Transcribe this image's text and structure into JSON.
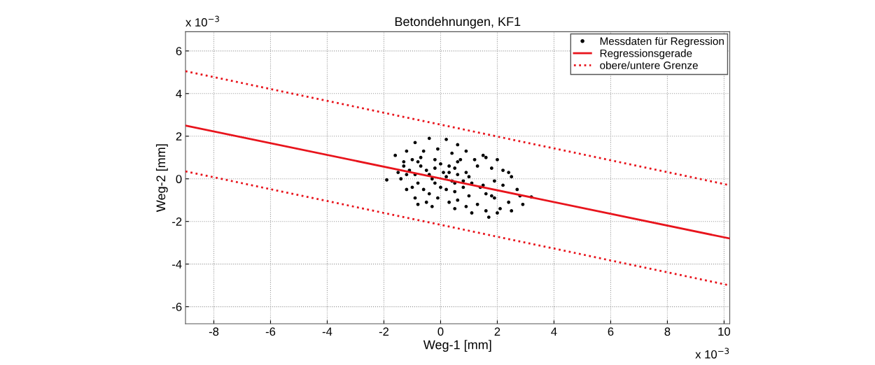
{
  "chart_data": {
    "type": "scatter",
    "title": "Betondehnungen, KF1",
    "xlabel": "Weg-1 [mm]",
    "ylabel": "Weg-2 [mm]",
    "annotations": [
      "x 10$^{−3}$",
      "x 10$^{−3}$"
    ],
    "xlim": [
      -9,
      10.2
    ],
    "ylim": [
      -6.8,
      6.9
    ],
    "xticks": [
      -8,
      -6,
      -4,
      -2,
      0,
      2,
      4,
      6,
      8,
      10
    ],
    "yticks": [
      -6,
      -4,
      -2,
      0,
      2,
      4,
      6
    ],
    "grid": true,
    "legend": "top right",
    "series": [
      {
        "name": "Messdaten für Regression",
        "marker": "circle",
        "color": "#000000",
        "x": [
          -1.9,
          -1.5,
          -1.3,
          -1.6,
          -1.2,
          -0.9,
          -0.4,
          0.2,
          0.6,
          0.9,
          0.7,
          0.3,
          -0.2,
          -0.7,
          -1.1,
          -1.4,
          -1.2,
          -0.9,
          -0.5,
          -0.1,
          0.2,
          0.5,
          0.9,
          1.2,
          1.5,
          1.3,
          1.0,
          0.8,
          0.6,
          0.9,
          1.3,
          1.6,
          1.9,
          2.2,
          2.4,
          2.2,
          1.9,
          1.6,
          1.7,
          2.0,
          2.4,
          2.8,
          3.2,
          2.9,
          2.5,
          2.1,
          1.8,
          1.5,
          1.1,
          0.6,
          0.2,
          -0.3,
          -0.8,
          -1.2,
          -1.0,
          -0.6,
          -0.1,
          0.4,
          0.6,
          0.3,
          -0.2,
          -0.6,
          -1.0,
          -0.9,
          -0.5,
          0.0,
          0.5,
          0.8,
          0.5,
          0.0,
          -0.4,
          -0.8,
          -0.3,
          0.3,
          1.0,
          1.4,
          1.8,
          1.6,
          2.0,
          2.5,
          2.7,
          1.1,
          0.5,
          -0.2,
          -0.7,
          -1.3,
          0.1,
          0.4,
          -0.4,
          -0.8
        ],
        "values": [
          -0.05,
          0.3,
          0.8,
          1.1,
          1.3,
          1.7,
          1.9,
          1.85,
          1.6,
          1.3,
          0.9,
          0.6,
          0.5,
          0.6,
          0.4,
          0.0,
          -0.5,
          -0.9,
          -1.1,
          -0.9,
          -0.5,
          -0.2,
          0.3,
          0.9,
          1.1,
          0.6,
          0.1,
          -0.4,
          -1.0,
          -1.3,
          -1.2,
          -0.7,
          -0.1,
          0.4,
          0.3,
          -0.3,
          -0.9,
          -1.5,
          -1.8,
          -1.6,
          -1.1,
          -0.8,
          -0.85,
          -1.2,
          -1.5,
          -1.4,
          -0.8,
          -0.3,
          -0.2,
          0.2,
          0.1,
          0.0,
          -0.2,
          0.2,
          0.9,
          1.3,
          1.4,
          1.2,
          0.8,
          0.3,
          -0.2,
          -0.5,
          -0.4,
          0.2,
          0.4,
          0.7,
          0.5,
          -0.1,
          -0.6,
          -0.4,
          -0.7,
          -1.2,
          -1.3,
          -1.1,
          -0.8,
          -0.4,
          0.5,
          1.0,
          0.9,
          0.1,
          -0.5,
          -1.6,
          -1.4,
          0.9,
          1.0,
          0.6,
          0.3,
          -0.1,
          0.2,
          0.8
        ]
      },
      {
        "name": "Regressionsgerade",
        "type": "line",
        "line_style": "solid",
        "color": "#e8141c",
        "x": [
          -9,
          10.2
        ],
        "values": [
          2.5,
          -2.8
        ]
      },
      {
        "name": "obere/untere Grenze",
        "type": "line",
        "line_style": "dotted",
        "color": "#e8141c",
        "x": [
          -9,
          10.2
        ],
        "values": [
          5.05,
          -0.3
        ]
      },
      {
        "type": "line",
        "line_style": "dotted",
        "color": "#e8141c",
        "x": [
          -9,
          10.2
        ],
        "values": [
          0.35,
          -5.0
        ]
      }
    ]
  }
}
